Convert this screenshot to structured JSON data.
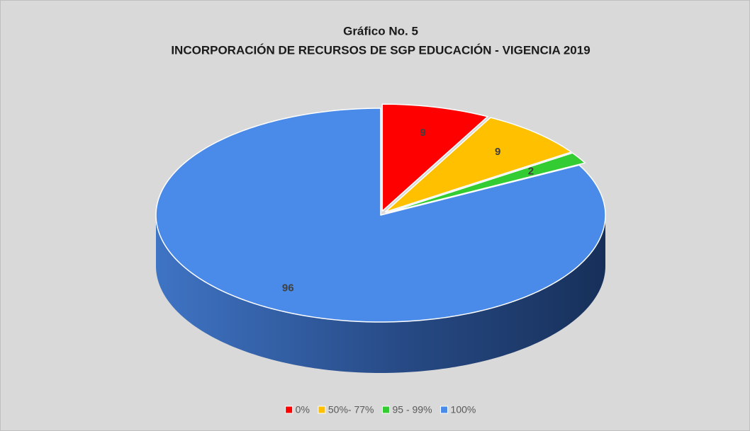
{
  "chart_data": {
    "type": "pie",
    "title": "Gráfico No. 5",
    "subtitle": "INCORPORACIÓN DE RECURSOS DE SGP EDUCACIÓN - VIGENCIA 2019",
    "categories": [
      "0%",
      "50%- 77%",
      "95 - 99%",
      "100%"
    ],
    "values": [
      9,
      9,
      2,
      96
    ],
    "colors": [
      "#ff0000",
      "#ffc000",
      "#33cc33",
      "#4a8ae8"
    ],
    "legend": "bottom"
  }
}
